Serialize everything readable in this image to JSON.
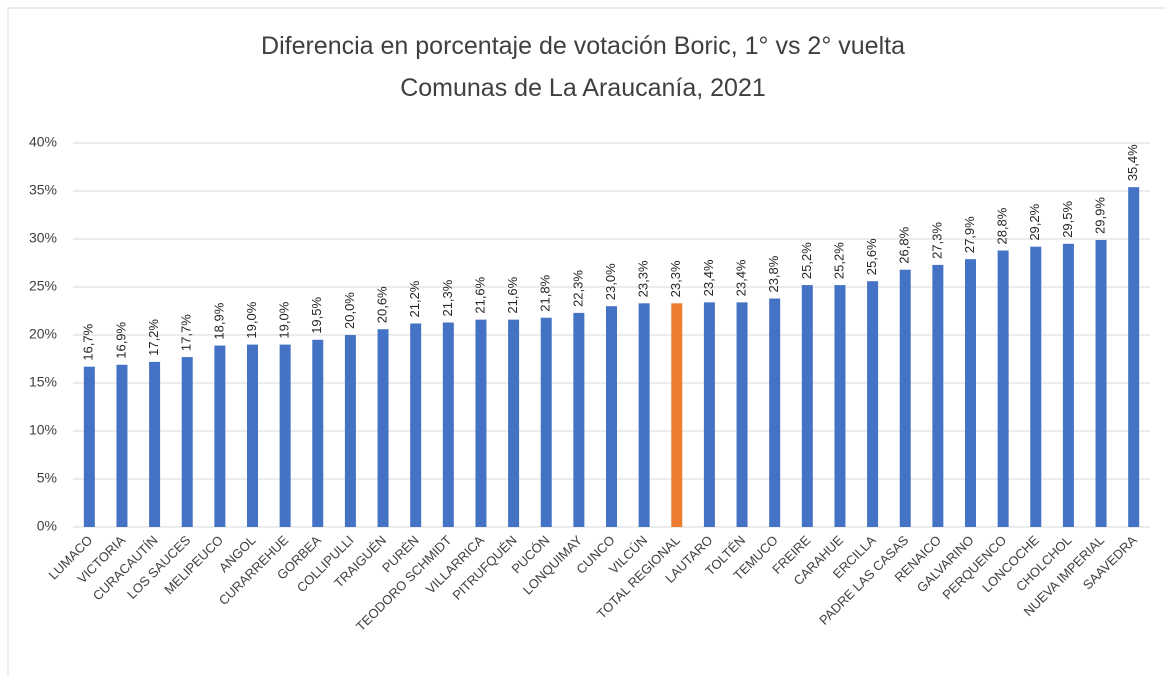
{
  "chart_data": {
    "type": "bar",
    "title": "Diferencia en porcentaje de votación Boric, 1° vs 2° vuelta",
    "subtitle": "Comunas de La Araucanía, 2021",
    "categories": [
      "LUMACO",
      "VICTORIA",
      "CURACAUTÍN",
      "LOS SAUCES",
      "MELIPEUCO",
      "ANGOL",
      "CURARREHUE",
      "GORBEA",
      "COLLIPULLI",
      "TRAIGUÉN",
      "PURÉN",
      "TEODORO SCHMIDT",
      "VILLARRICA",
      "PITRUFQUÉN",
      "PUCÓN",
      "LONQUIMAY",
      "CUNCO",
      "VILCÚN",
      "TOTAL REGIONAL",
      "LAUTARO",
      "TOLTÉN",
      "TEMUCO",
      "FREIRE",
      "CARAHUE",
      "ERCILLA",
      "PADRE LAS CASAS",
      "RENAICO",
      "GALVARINO",
      "PERQUENCO",
      "LONCOCHE",
      "CHOLCHOL",
      "NUEVA IMPERIAL",
      "SAAVEDRA"
    ],
    "values": [
      16.7,
      16.9,
      17.2,
      17.7,
      18.9,
      19.0,
      19.0,
      19.5,
      20.0,
      20.6,
      21.2,
      21.3,
      21.6,
      21.6,
      21.8,
      22.3,
      23.0,
      23.3,
      23.3,
      23.4,
      23.4,
      23.8,
      25.2,
      25.2,
      25.6,
      26.8,
      27.3,
      27.9,
      28.8,
      29.2,
      29.5,
      29.9,
      35.4
    ],
    "value_labels": [
      "16,7%",
      "16,9%",
      "17,2%",
      "17,7%",
      "18,9%",
      "19,0%",
      "19,0%",
      "19,5%",
      "20,0%",
      "20,6%",
      "21,2%",
      "21,3%",
      "21,6%",
      "21,6%",
      "21,8%",
      "22,3%",
      "23,0%",
      "23,3%",
      "23,3%",
      "23,4%",
      "23,4%",
      "23,8%",
      "25,2%",
      "25,2%",
      "25,6%",
      "26,8%",
      "27,3%",
      "27,9%",
      "28,8%",
      "29,2%",
      "29,5%",
      "29,9%",
      "35,4%"
    ],
    "color": "#4472c4",
    "colors": [
      "#4472c4",
      "#4472c4",
      "#4472c4",
      "#4472c4",
      "#4472c4",
      "#4472c4",
      "#4472c4",
      "#4472c4",
      "#4472c4",
      "#4472c4",
      "#4472c4",
      "#4472c4",
      "#4472c4",
      "#4472c4",
      "#4472c4",
      "#4472c4",
      "#4472c4",
      "#4472c4",
      "#ed7d31",
      "#4472c4",
      "#4472c4",
      "#4472c4",
      "#4472c4",
      "#4472c4",
      "#4472c4",
      "#4472c4",
      "#4472c4",
      "#4472c4",
      "#4472c4",
      "#4472c4",
      "#4472c4",
      "#4472c4",
      "#4472c4"
    ],
    "ylim": [
      0,
      40
    ],
    "yticks": [
      {
        "value": 0,
        "label": "0%"
      },
      {
        "value": 5,
        "label": "5%"
      },
      {
        "value": 10,
        "label": "10%"
      },
      {
        "value": 15,
        "label": "15%"
      },
      {
        "value": 20,
        "label": "20%"
      },
      {
        "value": 25,
        "label": "25%"
      },
      {
        "value": 30,
        "label": "30%"
      },
      {
        "value": 35,
        "label": "35%"
      },
      {
        "value": 40,
        "label": "40%"
      }
    ],
    "grid": true
  }
}
